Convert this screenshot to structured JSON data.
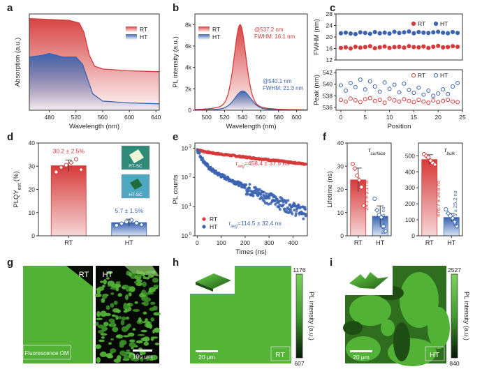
{
  "panels": {
    "a": {
      "letter": "a",
      "xlabel": "Wavelength (nm)",
      "ylabel": "Absorption (a.u.)",
      "xticks": [
        "480",
        "520",
        "560",
        "600",
        "640"
      ],
      "legend": [
        "RT",
        "HT"
      ]
    },
    "b": {
      "letter": "b",
      "xlabel": "Wavelength (nm)",
      "ylabel": "PL intensity (a.u.)",
      "xticks": [
        "500",
        "520",
        "540",
        "560",
        "580",
        "600"
      ],
      "yticks": [
        "0",
        "2k",
        "4k",
        "6k",
        "8k"
      ],
      "legend": [
        "RT",
        "HT"
      ],
      "rt_peak_text": "@537.2 nm",
      "rt_fwhm_text": "FWHM: 16.1 nm",
      "ht_peak_text": "@540.1 nm",
      "ht_fwhm_text": "FWHM: 21.3 nm"
    },
    "c": {
      "letter": "c",
      "xlabel": "Position",
      "top_ylabel": "FWHM (nm)",
      "bottom_ylabel": "Peak (nm)",
      "xticks": [
        "0",
        "5",
        "10",
        "15",
        "20",
        "25"
      ],
      "top_yticks": [
        "12",
        "16",
        "20",
        "24",
        "28"
      ],
      "bottom_yticks": [
        "536",
        "538",
        "540",
        "542"
      ],
      "legend": [
        "RT",
        "HT"
      ]
    },
    "d": {
      "letter": "d",
      "ylabel": "PLQY",
      "ylabel_sub": "ext",
      "ylabel_unit": " (%)",
      "yticks": [
        "0",
        "10",
        "20",
        "30",
        "40"
      ],
      "categories": [
        "RT",
        "HT"
      ],
      "rt_value_text": "30.2 ± 2.5%",
      "ht_value_text": "5.7 ± 1.5%",
      "inset_rt_label": "RT-SC",
      "inset_ht_label": "HT-SC"
    },
    "e": {
      "letter": "e",
      "xlabel": "Times (ns)",
      "ylabel": "PL counts",
      "xticks": [
        "0",
        "100",
        "200",
        "300",
        "400"
      ],
      "yticks_base": [
        "10",
        "10",
        "10",
        "10"
      ],
      "yticks_exp": [
        "0",
        "1",
        "2",
        "3"
      ],
      "legend": [
        "RT",
        "HT"
      ],
      "rt_tau_text": "=458.4 ± 37.5 ns",
      "ht_tau_text": "=114.5 ± 32.4 ns",
      "tau_symbol": "τ",
      "tau_sub": "avg"
    },
    "f": {
      "letter": "f",
      "ylabel": "Lifetime (ns)",
      "left_title": "τ",
      "left_title_sub": "surface",
      "right_title": "τ",
      "right_title_sub": "bulk",
      "left_yticks": [
        "0",
        "10",
        "20",
        "30",
        "40"
      ],
      "right_yticks": [
        "0",
        "100",
        "200",
        "300",
        "400",
        "500"
      ],
      "categories": [
        "RT",
        "HT"
      ],
      "left_rt_text": "24.1 ± 5.1 ns",
      "left_ht_text": "8.4 ± 4.5 ns",
      "right_rt_text": "476.7 ± 29.8 ns",
      "right_ht_text": "114.5 ± 25.2 ns"
    },
    "g": {
      "letter": "g",
      "rt_label": "RT",
      "ht_label": "HT",
      "caption": "Fluorescence OM",
      "scalebar": "100 μm"
    },
    "h": {
      "letter": "h",
      "cb_max": "1176",
      "cb_min": "607",
      "cb_label": "PL intensity (a.u.)",
      "scalebar": "20 μm",
      "tag": "RT"
    },
    "i": {
      "letter": "i",
      "cb_max": "2527",
      "cb_min": "840",
      "cb_label": "PL intensity (a.u.)",
      "scalebar": "20 μm",
      "tag": "HT"
    }
  },
  "colors": {
    "rt": "#d63a3a",
    "ht": "#3a63b0",
    "green": "#56b83a"
  },
  "chart_data": [
    {
      "panel": "a",
      "type": "area",
      "xlim": [
        450,
        645
      ],
      "series": [
        {
          "name": "RT",
          "x": [
            450,
            480,
            510,
            525,
            532,
            540,
            548,
            560,
            600,
            645
          ],
          "y": [
            1.0,
            0.99,
            0.98,
            0.95,
            0.85,
            0.6,
            0.48,
            0.45,
            0.43,
            0.42
          ]
        },
        {
          "name": "HT",
          "x": [
            450,
            470,
            480,
            500,
            520,
            530,
            537,
            545,
            560,
            600,
            645
          ],
          "y": [
            0.58,
            0.6,
            0.62,
            0.58,
            0.58,
            0.5,
            0.35,
            0.18,
            0.1,
            0.08,
            0.07
          ]
        }
      ]
    },
    {
      "panel": "b",
      "type": "area",
      "xlabel": "Wavelength (nm)",
      "ylabel": "PL intensity (a.u.)",
      "xlim": [
        487,
        612
      ],
      "ylim": [
        0,
        9000
      ],
      "series": [
        {
          "name": "RT",
          "peak_nm": 537.2,
          "fwhm_nm": 16.1,
          "peak_intensity": 8000
        },
        {
          "name": "HT",
          "peak_nm": 540.1,
          "fwhm_nm": 21.3,
          "peak_intensity": 1800
        }
      ]
    },
    {
      "panel": "c-top",
      "type": "scatter",
      "xlabel": "Position",
      "ylabel": "FWHM (nm)",
      "xlim": [
        -1,
        25
      ],
      "ylim": [
        12,
        28
      ],
      "x": [
        0,
        1,
        2,
        3,
        4,
        5,
        6,
        7,
        8,
        9,
        10,
        11,
        12,
        13,
        14,
        15,
        16,
        17,
        18,
        19,
        20,
        21,
        22,
        23,
        24
      ],
      "series": [
        {
          "name": "RT",
          "values": [
            16.2,
            16.4,
            16.0,
            16.6,
            16.3,
            16.5,
            16.8,
            16.1,
            16.4,
            16.7,
            16.2,
            16.5,
            16.6,
            16.3,
            16.8,
            16.5,
            16.4,
            16.7,
            16.2,
            16.6,
            16.9,
            16.4,
            16.5,
            16.8,
            16.6
          ]
        },
        {
          "name": "HT",
          "values": [
            21.3,
            21.5,
            21.2,
            21.0,
            21.6,
            21.4,
            21.1,
            21.7,
            21.3,
            21.5,
            21.2,
            21.8,
            21.4,
            21.6,
            21.9,
            21.3,
            21.7,
            21.5,
            21.4,
            21.6,
            21.8,
            21.5,
            21.3,
            21.7,
            21.4
          ]
        }
      ]
    },
    {
      "panel": "c-bottom",
      "type": "scatter",
      "xlabel": "Position",
      "ylabel": "Peak (nm)",
      "xlim": [
        -1,
        25
      ],
      "ylim": [
        535.5,
        542.5
      ],
      "x": [
        0,
        1,
        2,
        3,
        4,
        5,
        6,
        7,
        8,
        9,
        10,
        11,
        12,
        13,
        14,
        15,
        16,
        17,
        18,
        19,
        20,
        21,
        22,
        23,
        24
      ],
      "series": [
        {
          "name": "RT",
          "values": [
            537.3,
            537.0,
            537.5,
            537.2,
            536.9,
            537.4,
            537.6,
            537.1,
            537.3,
            536.8,
            537.5,
            537.2,
            537.0,
            537.4,
            537.1,
            536.9,
            537.3,
            537.0,
            536.8,
            537.2,
            536.9,
            537.1,
            537.3,
            537.0,
            536.9
          ]
        },
        {
          "name": "HT",
          "values": [
            539.8,
            538.9,
            540.2,
            539.5,
            540.8,
            539.1,
            540.5,
            539.6,
            538.7,
            540.3,
            539.2,
            539.9,
            538.6,
            540.1,
            539.0,
            538.5,
            539.4,
            538.2,
            538.9,
            538.0,
            538.4,
            539.1,
            538.3,
            539.6,
            540.2
          ]
        }
      ]
    },
    {
      "panel": "d",
      "type": "bar",
      "ylabel": "PLQYext (%)",
      "categories": [
        "RT",
        "HT"
      ],
      "values": [
        30.2,
        5.7
      ],
      "errors": [
        2.5,
        1.5
      ],
      "ylim": [
        0,
        40
      ],
      "points": [
        [
          27.5,
          29.5,
          30.5,
          31.5,
          33.0,
          28.5
        ],
        [
          4.5,
          5.2,
          6.0,
          6.8,
          5.5,
          4.8
        ]
      ]
    },
    {
      "panel": "e",
      "type": "scatter",
      "xlabel": "Times (ns)",
      "ylabel": "PL counts",
      "xlim": [
        -10,
        460
      ],
      "yscale": "log",
      "ylim": [
        1,
        1500
      ],
      "series": [
        {
          "name": "RT",
          "tau_avg_ns": 458.4,
          "tau_err_ns": 37.5
        },
        {
          "name": "HT",
          "tau_avg_ns": 114.5,
          "tau_err_ns": 32.4
        }
      ]
    },
    {
      "panel": "f-left",
      "type": "bar",
      "title": "τsurface",
      "ylabel": "Lifetime (ns)",
      "categories": [
        "RT",
        "HT"
      ],
      "values": [
        24.1,
        8.4
      ],
      "errors": [
        5.1,
        4.5
      ],
      "ylim": [
        0,
        40
      ],
      "points": [
        [
          31.0,
          29.0,
          26.0,
          24.0,
          21.0,
          13.0
        ],
        [
          16.0,
          11.0,
          9.0,
          8.0,
          4.0,
          2.0
        ]
      ]
    },
    {
      "panel": "f-right",
      "type": "bar",
      "title": "τbulk",
      "categories": [
        "RT",
        "HT"
      ],
      "values": [
        476.7,
        114.5
      ],
      "errors": [
        29.8,
        25.2
      ],
      "ylim": [
        0,
        580
      ],
      "points": [
        [
          510.0,
          500.0,
          490.0,
          470.0,
          455.0,
          445.0
        ],
        [
          165.0,
          140.0,
          125.0,
          110.0,
          85.0,
          60.0
        ]
      ]
    }
  ]
}
